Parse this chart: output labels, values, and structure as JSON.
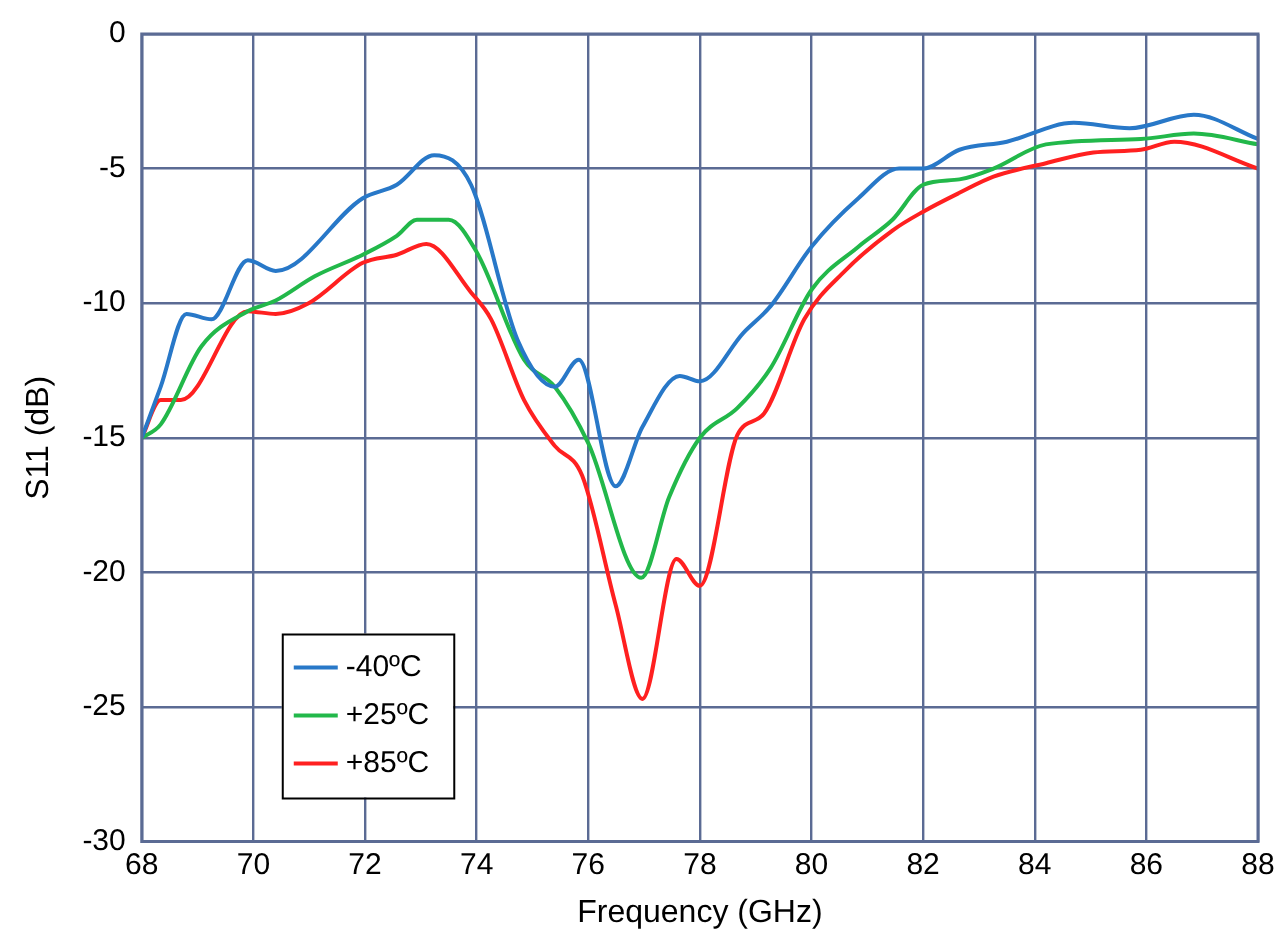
{
  "chart_data": {
    "type": "line",
    "xlabel": "Frequency (GHz)",
    "ylabel": "S11 (dB)",
    "xlim": [
      68,
      88
    ],
    "xticks": [
      68,
      70,
      72,
      74,
      76,
      78,
      80,
      82,
      84,
      86,
      88
    ],
    "ylim": [
      -30,
      0
    ],
    "yticks": [
      -30,
      -25,
      -20,
      -15,
      -10,
      -5,
      0
    ],
    "grid": true,
    "legend": "bottom left",
    "marker": "none",
    "line_style": "solid",
    "series": [
      {
        "name": "-40ºC",
        "color": "#2878c8",
        "x": [
          68,
          68.34,
          68.8,
          69.25,
          69.9,
          70.4,
          71.96,
          72.57,
          73.24,
          73.9,
          74.74,
          75.4,
          75.83,
          76.49,
          76.97,
          77.64,
          78,
          78.78,
          79.27,
          80,
          80.84,
          81.57,
          82,
          82.65,
          83.5,
          84.7,
          85.7,
          86.85,
          88
        ],
        "values": [
          -15,
          -13.1,
          -10.4,
          -10.6,
          -8.4,
          -8.8,
          -6.1,
          -5.6,
          -4.5,
          -5.6,
          -11.4,
          -13.1,
          -12.1,
          -16.8,
          -14.6,
          -12.7,
          -12.9,
          -11.1,
          -10.1,
          -7.9,
          -6.1,
          -5,
          -5,
          -4.3,
          -4,
          -3.3,
          -3.5,
          -3,
          -3.9
        ]
      },
      {
        "name": "+25ºC",
        "color": "#22b84a",
        "x": [
          68,
          68.34,
          69.07,
          69.9,
          70.4,
          71.1,
          71.96,
          72.57,
          72.93,
          73.5,
          74,
          74.85,
          75.4,
          76,
          76.95,
          77.45,
          78,
          78.67,
          79.27,
          80,
          80.84,
          81.45,
          82,
          82.65,
          83.26,
          84.2,
          85.9,
          86.85,
          88
        ],
        "values": [
          -15,
          -14.5,
          -11.6,
          -10.3,
          -9.9,
          -9,
          -8.2,
          -7.5,
          -6.9,
          -6.9,
          -8.1,
          -12.1,
          -13.1,
          -15.2,
          -20.2,
          -17.2,
          -15,
          -13.9,
          -12.4,
          -9.5,
          -7.9,
          -6.9,
          -5.6,
          -5.4,
          -5,
          -4.1,
          -3.9,
          -3.7,
          -4.1
        ]
      },
      {
        "name": "+85ºC",
        "color": "#ff2020",
        "x": [
          68,
          68.34,
          68.7,
          69.9,
          70.4,
          70.99,
          71.96,
          72.57,
          73.1,
          73.9,
          74.26,
          74.85,
          75.4,
          75.89,
          76.49,
          76.97,
          77.58,
          78,
          78.67,
          79.15,
          79.87,
          80.6,
          81.45,
          82,
          82.65,
          83.26,
          84.2,
          85.05,
          85.9,
          86.5,
          88
        ],
        "values": [
          -15,
          -13.6,
          -13.6,
          -10.3,
          -10.4,
          -10,
          -8.5,
          -8.2,
          -7.8,
          -9.6,
          -10.6,
          -13.6,
          -15.3,
          -16.4,
          -21.2,
          -24.7,
          -19.5,
          -20.5,
          -14.9,
          -14.1,
          -10.6,
          -8.8,
          -7.3,
          -6.6,
          -5.9,
          -5.3,
          -4.8,
          -4.4,
          -4.3,
          -4,
          -5
        ]
      }
    ]
  }
}
